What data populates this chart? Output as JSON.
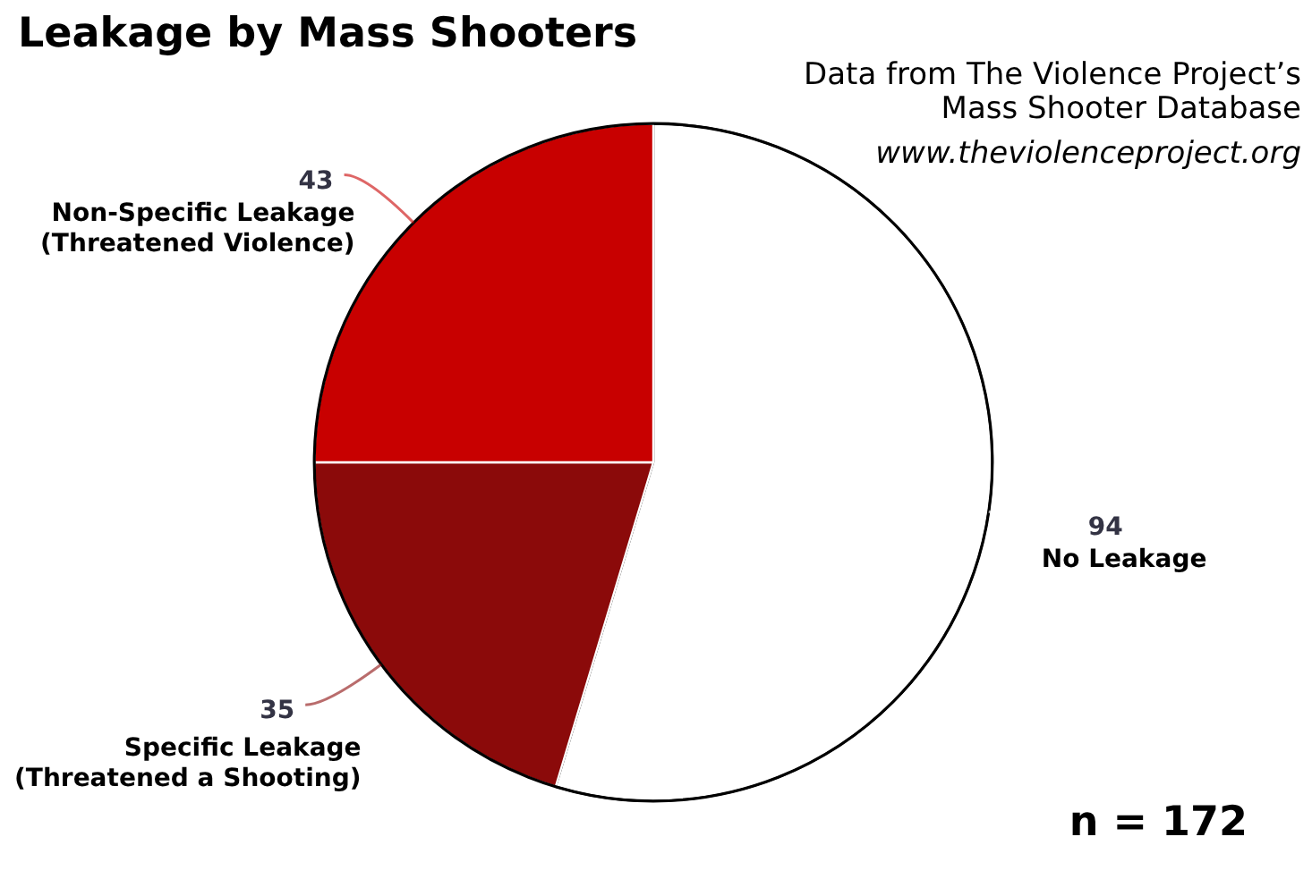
{
  "chart_data": {
    "type": "pie",
    "title": "Leakage by Mass Shooters",
    "categories": [
      "No Leakage",
      "Specific Leakage (Threatened a Shooting)",
      "Non-Specific Leakage (Threatened Violence)"
    ],
    "values": [
      94,
      35,
      43
    ],
    "colors": [
      "#ffffff",
      "#8b0a0a",
      "#c80000"
    ],
    "data_labels": true,
    "annotations": [
      "Data from The Violence Project’s Mass Shooter Database",
      "www.theviolenceproject.org",
      "n = 172"
    ]
  }
}
